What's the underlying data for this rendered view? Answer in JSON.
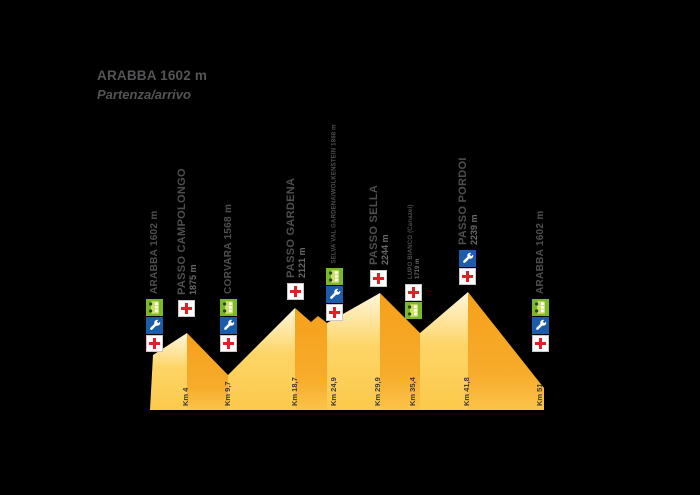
{
  "title": {
    "line1": "ARABBA 1602 m",
    "line2": "Partenza/arrivo"
  },
  "colors": {
    "background": "#000000",
    "slope_light_top": "#FFF6DC",
    "slope_light_mid": "#FDD566",
    "slope_light_bottom": "#FCC94B",
    "slope_dark_top": "#F5A01B",
    "slope_dark_bottom": "#FBC34A",
    "first_aid_red": "#E31E24",
    "wrench_blue": "#1D5CA9",
    "bus_green": "#7AB82C",
    "label_gray": "#4D4E50",
    "title_gray": "#545457"
  },
  "icon_legend": {
    "cross": "first-aid-station",
    "wrench": "mechanical-assistance",
    "bus": "shuttle-bus-stop"
  },
  "stations": [
    {
      "id": "arabba-start",
      "lines": [
        "ARABBA 1602 m"
      ],
      "size": "medium",
      "km": "",
      "icons": [
        "bus",
        "wrench",
        "cross"
      ]
    },
    {
      "id": "passo-campolongo",
      "lines": [
        "PASSO CAMPOLONGO",
        "1875 m"
      ],
      "size": "large",
      "km": "Km 4",
      "icons": [
        "cross"
      ]
    },
    {
      "id": "corvara",
      "lines": [
        "CORVARA 1568 m"
      ],
      "size": "medium",
      "km": "Km 9,7",
      "icons": [
        "bus",
        "wrench",
        "cross"
      ]
    },
    {
      "id": "passo-gardena",
      "lines": [
        "PASSO GARDENA",
        "2121 m"
      ],
      "size": "large",
      "km": "Km 18,7",
      "icons": [
        "cross"
      ]
    },
    {
      "id": "selva-gardena",
      "lines": [
        "SELVA VAL GARDENA/WOLKENSTEIN 1868 m"
      ],
      "size": "small",
      "km": "Km 24,9",
      "icons": [
        "bus",
        "wrench",
        "cross"
      ]
    },
    {
      "id": "passo-sella",
      "lines": [
        "PASSO SELLA",
        "2244 m"
      ],
      "size": "large",
      "km": "Km 29,9",
      "icons": [
        "cross"
      ]
    },
    {
      "id": "lupo-bianco",
      "lines": [
        "LUPO BIANCO (Canazei)",
        "1719 m"
      ],
      "size": "small",
      "km": "Km 35,4",
      "icons": [
        "cross",
        "bus"
      ]
    },
    {
      "id": "passo-pordoi",
      "lines": [
        "PASSO PORDOI",
        "2239 m"
      ],
      "size": "large",
      "km": "Km 41,8",
      "icons": [
        "wrench",
        "cross"
      ]
    },
    {
      "id": "arabba-finish",
      "lines": [
        "ARABBA 1602 m"
      ],
      "size": "medium",
      "km": "Km 51",
      "icons": [
        "bus",
        "wrench",
        "cross"
      ]
    }
  ],
  "chart_data": {
    "type": "area",
    "title": "ARABBA 1602 m",
    "subtitle": "Partenza/arrivo",
    "xlabel": "Km",
    "ylabel": "m",
    "x": [
      0,
      4,
      9.7,
      18.7,
      24.9,
      29.9,
      35.4,
      41.8,
      51
    ],
    "y": [
      1602,
      1875,
      1568,
      2121,
      1868,
      2244,
      1719,
      2239,
      1602
    ],
    "point_labels": [
      "Arabba",
      "Passo Campolongo",
      "Corvara",
      "Passo Gardena",
      "Selva Val Gardena/Wolkenstein",
      "Passo Sella",
      "Lupo Bianco (Canazei)",
      "Passo Pordoi",
      "Arabba"
    ],
    "xlim": [
      0,
      51
    ],
    "grid": false,
    "legend": "none",
    "style": "stylized two-tone orange mountain silhouettes, km ticks rotated 90deg at each peak/valley"
  }
}
